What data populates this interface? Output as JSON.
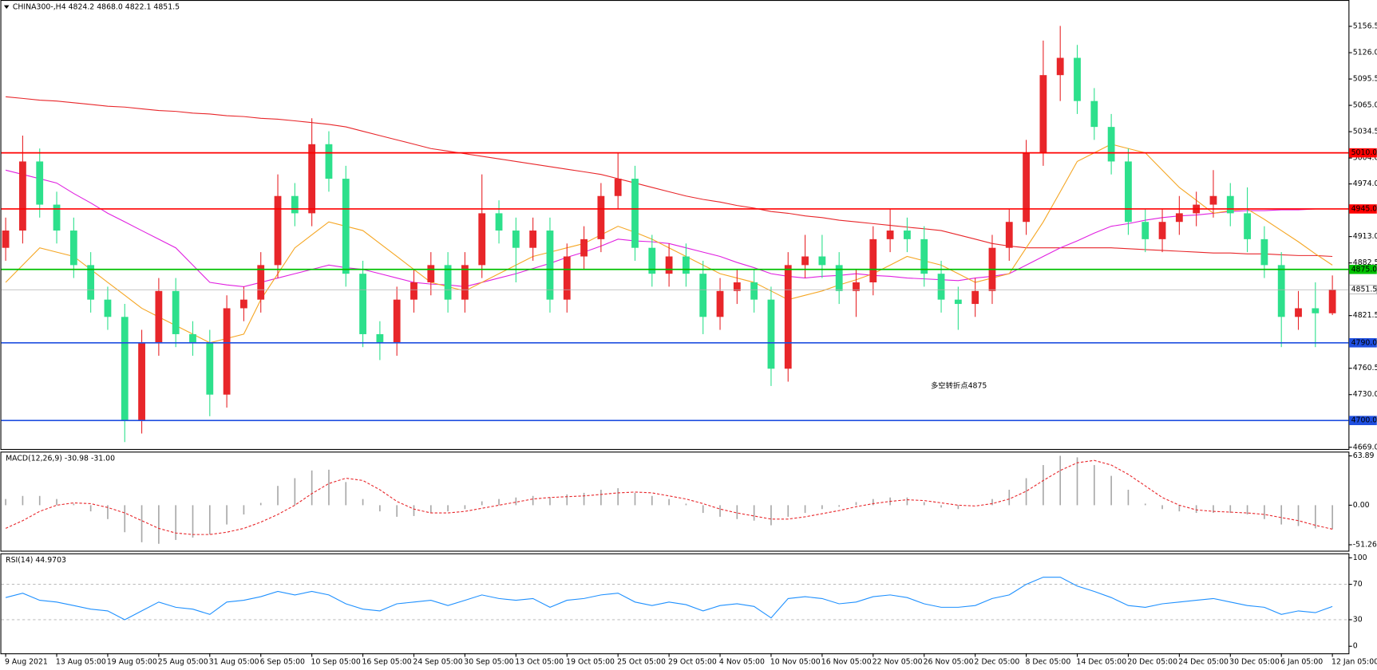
{
  "chart_data": [
    {
      "type": "candlestick",
      "title": "CHINA300-,H4  4824.2 4868.0 4822.1 4851.5",
      "categories": [
        "9 Aug 2021",
        null,
        null,
        "13 Aug 05:00",
        null,
        null,
        "19 Aug 05:00",
        null,
        null,
        "25 Aug 05:00",
        null,
        null,
        "31 Aug 05:00",
        null,
        null,
        "6 Sep 05:00",
        null,
        null,
        "10 Sep 05:00",
        null,
        null,
        "16 Sep 05:00",
        null,
        null,
        "24 Sep 05:00",
        null,
        null,
        "30 Sep 05:00",
        null,
        null,
        "13 Oct 05:00",
        null,
        null,
        "19 Oct 05:00",
        null,
        null,
        "25 Oct 05:00",
        null,
        null,
        "29 Oct 05:00",
        null,
        null,
        "4 Nov 05:00",
        null,
        null,
        "10 Nov 05:00",
        null,
        null,
        "16 Nov 05:00",
        null,
        null,
        "22 Nov 05:00",
        null,
        null,
        "26 Nov 05:00",
        null,
        null,
        "2 Dec 05:00",
        null,
        null,
        "8 Dec 05:00",
        null,
        null,
        "14 Dec 05:00",
        null,
        null,
        "20 Dec 05:00",
        null,
        null,
        "24 Dec 05:00",
        null,
        null,
        "30 Dec 05:00",
        null,
        null,
        "6 Jan 05:00",
        null,
        null,
        "12 Jan 05:00"
      ],
      "open": [
        4900,
        4920,
        5000,
        4950,
        4920,
        4880,
        4840,
        4820,
        4700,
        4790,
        4850,
        4800,
        4790,
        4730,
        4830,
        4840,
        4880,
        4960,
        4940,
        5020,
        4980,
        4870,
        4800,
        4790,
        4840,
        4860,
        4880,
        4840,
        4880,
        4940,
        4920,
        4900,
        4920,
        4840,
        4890,
        4910,
        4960,
        4980,
        4900,
        4870,
        4890,
        4870,
        4820,
        4850,
        4860,
        4840,
        4760,
        4880,
        4890,
        4880,
        4850,
        4860,
        4910,
        4920,
        4910,
        4870,
        4840,
        4835,
        4850,
        4900,
        4930,
        5010,
        5100,
        5120,
        5070,
        5040,
        5000,
        4930,
        4910,
        4930,
        4940,
        4950,
        4960,
        4940,
        4910,
        4880,
        4820,
        4830,
        4824.2
      ],
      "high": [
        4935,
        5030,
        5015,
        4965,
        4935,
        4895,
        4855,
        4835,
        4805,
        4865,
        4865,
        4815,
        4805,
        4845,
        4855,
        4895,
        4985,
        4975,
        5050,
        5035,
        4995,
        4885,
        4815,
        4855,
        4875,
        4895,
        4895,
        4895,
        4985,
        4955,
        4935,
        4935,
        4935,
        4905,
        4925,
        4975,
        5010,
        4995,
        4915,
        4905,
        4905,
        4885,
        4865,
        4875,
        4875,
        4855,
        4895,
        4915,
        4915,
        4895,
        4875,
        4925,
        4945,
        4935,
        4925,
        4885,
        4855,
        4865,
        4915,
        4945,
        5025,
        5140,
        5157,
        5135,
        5085,
        5055,
        5015,
        4945,
        4945,
        4960,
        4965,
        4990,
        4975,
        4970,
        4925,
        4895,
        4850,
        4860,
        4868
      ],
      "low": [
        4885,
        4905,
        4935,
        4905,
        4865,
        4825,
        4805,
        4675,
        4685,
        4775,
        4785,
        4775,
        4705,
        4715,
        4815,
        4825,
        4865,
        4925,
        4925,
        4965,
        4855,
        4785,
        4770,
        4775,
        4825,
        4845,
        4825,
        4825,
        4865,
        4905,
        4860,
        4885,
        4825,
        4825,
        4875,
        4895,
        4945,
        4885,
        4855,
        4855,
        4855,
        4800,
        4805,
        4835,
        4825,
        4740,
        4745,
        4865,
        4865,
        4835,
        4820,
        4845,
        4895,
        4895,
        4855,
        4825,
        4805,
        4820,
        4835,
        4885,
        4915,
        4995,
        5070,
        5055,
        5025,
        4985,
        4915,
        4895,
        4895,
        4915,
        4925,
        4935,
        4925,
        4895,
        4865,
        4785,
        4805,
        4785,
        4822.1
      ],
      "close": [
        4920,
        5000,
        4950,
        4920,
        4880,
        4840,
        4820,
        4700,
        4790,
        4850,
        4800,
        4790,
        4730,
        4830,
        4840,
        4880,
        4960,
        4940,
        5020,
        4980,
        4870,
        4800,
        4790,
        4840,
        4860,
        4880,
        4840,
        4880,
        4940,
        4920,
        4900,
        4920,
        4840,
        4890,
        4910,
        4960,
        4980,
        4900,
        4870,
        4890,
        4870,
        4820,
        4850,
        4860,
        4840,
        4760,
        4880,
        4890,
        4880,
        4850,
        4860,
        4910,
        4920,
        4910,
        4870,
        4840,
        4835,
        4850,
        4900,
        4930,
        5010,
        5100,
        5120,
        5070,
        5040,
        5000,
        4930,
        4910,
        4930,
        4940,
        4950,
        4960,
        4940,
        4910,
        4880,
        4820,
        4830,
        4824.2,
        4851.5
      ],
      "up_color": "#e8262a",
      "down_color": "#2de08c",
      "series": [
        {
          "color": "#e8262a",
          "values": [
            5075,
            5073,
            5071,
            5070,
            5068,
            5066,
            5064,
            5063,
            5061,
            5059,
            5058,
            5056,
            5055,
            5053,
            5052,
            5050,
            5049,
            5047,
            5045,
            5043,
            5040,
            5035,
            5030,
            5025,
            5020,
            5015,
            5012,
            5009,
            5006,
            5003,
            5000,
            4997,
            4994,
            4991,
            4988,
            4985,
            4980,
            4975,
            4970,
            4965,
            4960,
            4956,
            4953,
            4949,
            4946,
            4942,
            4940,
            4937,
            4935,
            4932,
            4930,
            4928,
            4926,
            4924,
            4922,
            4920,
            4915,
            4910,
            4905,
            4902,
            4900,
            4900,
            4900,
            4900,
            4900,
            4900,
            4899,
            4898,
            4897,
            4896,
            4895,
            4894,
            4894,
            4893,
            4893,
            4892,
            4891,
            4891,
            4890
          ]
        },
        {
          "color": "#e020e0",
          "values": [
            4990,
            4985,
            4980,
            4975,
            4963,
            4952,
            4940,
            4930,
            4920,
            4910,
            4900,
            4880,
            4860,
            4857,
            4855,
            4860,
            4865,
            4870,
            4875,
            4880,
            4877,
            4875,
            4870,
            4865,
            4860,
            4858,
            4857,
            4855,
            4860,
            4865,
            4870,
            4876,
            4882,
            4889,
            4895,
            4902,
            4910,
            4908,
            4907,
            4905,
            4900,
            4895,
            4890,
            4883,
            4877,
            4870,
            4867,
            4865,
            4867,
            4868,
            4870,
            4868,
            4867,
            4865,
            4864,
            4863,
            4862,
            4865,
            4867,
            4870,
            4880,
            4890,
            4900,
            4908,
            4917,
            4925,
            4928,
            4932,
            4935,
            4937,
            4938,
            4940,
            4942,
            4943,
            4943,
            4944,
            4944,
            4945,
            4945
          ]
        },
        {
          "color": "#f5a623",
          "values": [
            4860,
            4880,
            4900,
            4895,
            4890,
            4875,
            4860,
            4845,
            4830,
            4820,
            4810,
            4800,
            4790,
            4795,
            4800,
            4840,
            4870,
            4900,
            4915,
            4930,
            4925,
            4920,
            4905,
            4890,
            4875,
            4860,
            4855,
            4850,
            4860,
            4870,
            4880,
            4890,
            4895,
            4900,
            4905,
            4915,
            4925,
            4918,
            4910,
            4900,
            4890,
            4880,
            4870,
            4865,
            4860,
            4850,
            4840,
            4845,
            4850,
            4857,
            4863,
            4870,
            4880,
            4890,
            4885,
            4880,
            4870,
            4860,
            4865,
            4870,
            4900,
            4930,
            4965,
            5000,
            5010,
            5020,
            5015,
            5010,
            4990,
            4970,
            4955,
            4940,
            4943,
            4945,
            4933,
            4920,
            4907,
            4893,
            4880
          ]
        }
      ],
      "levels": [
        {
          "value": 5010,
          "label": "5010.0",
          "color": "#ff0000"
        },
        {
          "value": 4945,
          "label": "4945.0",
          "color": "#ff0000"
        },
        {
          "value": 4875,
          "label": "4875.0",
          "color": "#00c000"
        },
        {
          "value": 4851.5,
          "color": "#b0b0b0"
        },
        {
          "value": 4790,
          "label": "4790.0",
          "color": "#1f4fe0"
        },
        {
          "value": 4700,
          "label": "4700.0",
          "color": "#1f4fe0"
        }
      ],
      "annotation": {
        "text": "多空转折点4875",
        "color": "#e8262a"
      },
      "ylim": [
        4667,
        5187
      ],
      "yticks": [
        5156.5,
        {
          "value": 5126,
          "label": "5126.0"
        },
        5095.5,
        {
          "value": 5065,
          "label": "5065.0"
        },
        5034.5,
        {
          "value": 5004,
          "label": "5004.0"
        },
        {
          "value": 4974,
          "label": "4974.0"
        },
        {
          "value": 4913,
          "label": "4913.0"
        },
        4882.5,
        4821.5,
        4760.5,
        {
          "value": 4730,
          "label": "4730.0"
        },
        {
          "value": 4669,
          "label": "4669.0"
        }
      ]
    },
    {
      "type": "macd",
      "title": "MACD(12,26,9) -30.98 -31.00",
      "series": [
        {
          "color": "#a8a8a8",
          "style": "histogram",
          "values": [
            8,
            12,
            12,
            8,
            2,
            -8,
            -18,
            -35,
            -48,
            -50,
            -45,
            -42,
            -38,
            -25,
            -12,
            3,
            25,
            35,
            45,
            46,
            30,
            8,
            -8,
            -15,
            -14,
            -10,
            -8,
            -5,
            5,
            8,
            10,
            12,
            10,
            14,
            16,
            20,
            22,
            16,
            12,
            8,
            2,
            -10,
            -15,
            -18,
            -20,
            -26,
            -15,
            -10,
            -5,
            -2,
            4,
            8,
            10,
            10,
            4,
            -3,
            -5,
            0,
            8,
            20,
            35,
            52,
            64,
            62,
            52,
            38,
            20,
            2,
            -5,
            -8,
            -10,
            -10,
            -10,
            -12,
            -18,
            -25,
            -27,
            -30,
            -30.98
          ]
        },
        {
          "color": "#e8262a",
          "style": "dashed",
          "values": [
            -30,
            -20,
            -8,
            0,
            3,
            2,
            -3,
            -10,
            -20,
            -30,
            -36,
            -38,
            -38,
            -35,
            -30,
            -22,
            -12,
            0,
            15,
            28,
            35,
            32,
            20,
            5,
            -5,
            -10,
            -10,
            -8,
            -4,
            0,
            4,
            8,
            10,
            11,
            12,
            14,
            16,
            17,
            16,
            12,
            8,
            2,
            -5,
            -10,
            -14,
            -18,
            -18,
            -15,
            -11,
            -7,
            -2,
            2,
            5,
            7,
            6,
            3,
            0,
            -1,
            2,
            8,
            18,
            32,
            45,
            55,
            58,
            52,
            40,
            25,
            10,
            0,
            -6,
            -8,
            -9,
            -10,
            -12,
            -16,
            -20,
            -26,
            -31
          ]
        }
      ],
      "ylim": [
        -59,
        69.4
      ],
      "yticks": [
        63.89,
        {
          "value": 0,
          "label": "0.00"
        },
        -51.26
      ]
    },
    {
      "type": "line",
      "title": "RSI(14) 44.9703",
      "series": [
        {
          "color": "#1e90ff",
          "values": [
            55,
            60,
            52,
            50,
            46,
            42,
            40,
            30,
            40,
            50,
            44,
            42,
            36,
            50,
            52,
            56,
            62,
            58,
            62,
            58,
            48,
            42,
            40,
            48,
            50,
            52,
            46,
            52,
            58,
            54,
            52,
            54,
            44,
            52,
            54,
            58,
            60,
            50,
            46,
            50,
            47,
            40,
            46,
            48,
            45,
            32,
            54,
            56,
            54,
            48,
            50,
            56,
            58,
            55,
            48,
            44,
            44,
            46,
            54,
            58,
            70,
            78,
            78,
            68,
            62,
            55,
            46,
            44,
            48,
            50,
            52,
            54,
            50,
            46,
            44,
            36,
            40,
            38,
            44.9703
          ]
        }
      ],
      "levels": [
        70,
        30
      ],
      "ylim": [
        -8,
        105
      ],
      "yticks": [
        100,
        70,
        30,
        0
      ]
    }
  ]
}
